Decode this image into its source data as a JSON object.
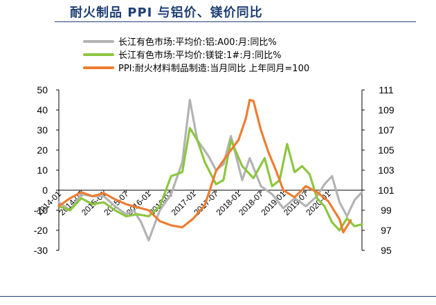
{
  "title": "耐火制品 PPI 与铝价、镁价同比",
  "colors": {
    "title": "#1f3f74",
    "aluminum": "#b3b3b3",
    "magnesium": "#8cc63f",
    "ppi": "#ed7d31",
    "axis": "#000000"
  },
  "chart_data": {
    "type": "line",
    "legend_position": "top",
    "grid": false,
    "x_labels": [
      "2014-01",
      "2014-07",
      "2015-01",
      "2015-07",
      "2016-01",
      "2016-07",
      "2017-01",
      "2017-07",
      "2018-01",
      "2018-07",
      "2019-01",
      "2019-07",
      "2020-01"
    ],
    "x_range": [
      "2014-01",
      "2020-10"
    ],
    "left_axis": {
      "ylim": [
        -30,
        50
      ],
      "ticks": [
        "50",
        "40",
        "30",
        "20",
        "10",
        "0",
        "-10",
        "-20",
        "-30"
      ]
    },
    "right_axis": {
      "ylim": [
        95,
        111
      ],
      "ticks": [
        "111",
        "109",
        "107",
        "105",
        "103",
        "101",
        "99",
        "97",
        "95"
      ]
    },
    "series": [
      {
        "name": "长江有色市场:平均价:铝:A00:月:同比%",
        "axis": "left",
        "color": "#b3b3b3",
        "points": [
          [
            "2014-01",
            -6
          ],
          [
            "2014-04",
            -10
          ],
          [
            "2014-07",
            -2
          ],
          [
            "2014-10",
            -3
          ],
          [
            "2015-01",
            -3
          ],
          [
            "2015-04",
            -8
          ],
          [
            "2015-07",
            -12
          ],
          [
            "2015-09",
            -10
          ],
          [
            "2015-11",
            -16
          ],
          [
            "2016-01",
            -25
          ],
          [
            "2016-04",
            -10
          ],
          [
            "2016-07",
            -2
          ],
          [
            "2016-10",
            14
          ],
          [
            "2016-12",
            45
          ],
          [
            "2017-02",
            25
          ],
          [
            "2017-05",
            17
          ],
          [
            "2017-07",
            10
          ],
          [
            "2017-09",
            13
          ],
          [
            "2017-11",
            27
          ],
          [
            "2018-02",
            5
          ],
          [
            "2018-04",
            16
          ],
          [
            "2018-07",
            2
          ],
          [
            "2018-10",
            -2
          ],
          [
            "2019-01",
            -9
          ],
          [
            "2019-04",
            -4
          ],
          [
            "2019-07",
            -8
          ],
          [
            "2019-10",
            -3
          ],
          [
            "2019-12",
            3
          ],
          [
            "2020-02",
            7
          ],
          [
            "2020-04",
            -6
          ],
          [
            "2020-06",
            -13
          ],
          [
            "2020-08",
            -5
          ],
          [
            "2020-10",
            -1
          ]
        ]
      },
      {
        "name": "长江有色市场:平均价:镁锭:1#:月:同比%",
        "axis": "left",
        "color": "#8cc63f",
        "points": [
          [
            "2014-01",
            -8
          ],
          [
            "2014-04",
            -10
          ],
          [
            "2014-07",
            -4
          ],
          [
            "2014-10",
            -7
          ],
          [
            "2015-01",
            -6
          ],
          [
            "2015-04",
            -10
          ],
          [
            "2015-07",
            -13
          ],
          [
            "2015-10",
            -12
          ],
          [
            "2016-01",
            -13
          ],
          [
            "2016-04",
            -8
          ],
          [
            "2016-07",
            7
          ],
          [
            "2016-10",
            9
          ],
          [
            "2016-12",
            31
          ],
          [
            "2017-02",
            25
          ],
          [
            "2017-04",
            14
          ],
          [
            "2017-07",
            3
          ],
          [
            "2017-09",
            5
          ],
          [
            "2017-11",
            25
          ],
          [
            "2018-02",
            12
          ],
          [
            "2018-05",
            6
          ],
          [
            "2018-08",
            16
          ],
          [
            "2018-10",
            2
          ],
          [
            "2018-12",
            5
          ],
          [
            "2019-02",
            23
          ],
          [
            "2019-04",
            9
          ],
          [
            "2019-06",
            12
          ],
          [
            "2019-08",
            8
          ],
          [
            "2019-10",
            -4
          ],
          [
            "2019-12",
            -8
          ],
          [
            "2020-02",
            -16
          ],
          [
            "2020-04",
            -20
          ],
          [
            "2020-06",
            -14
          ],
          [
            "2020-08",
            -18
          ],
          [
            "2020-10",
            -17
          ]
        ]
      },
      {
        "name": "PPI:耐火材料制品制造:当月同比 上年同月=100",
        "axis": "right",
        "color": "#ed7d31",
        "points": [
          [
            "2014-01",
            99.4
          ],
          [
            "2014-04",
            100.2
          ],
          [
            "2014-07",
            100.8
          ],
          [
            "2014-10",
            100.4
          ],
          [
            "2015-01",
            100.7
          ],
          [
            "2015-04",
            100.1
          ],
          [
            "2015-07",
            99.6
          ],
          [
            "2015-10",
            99.3
          ],
          [
            "2016-01",
            99.0
          ],
          [
            "2016-04",
            97.9
          ],
          [
            "2016-07",
            97.5
          ],
          [
            "2016-10",
            97.3
          ],
          [
            "2017-01",
            98.2
          ],
          [
            "2017-04",
            99.5
          ],
          [
            "2017-07",
            102.9
          ],
          [
            "2017-10",
            104.5
          ],
          [
            "2018-01",
            106.0
          ],
          [
            "2018-03",
            108.2
          ],
          [
            "2018-04",
            110.0
          ],
          [
            "2018-05",
            109.9
          ],
          [
            "2018-07",
            107.0
          ],
          [
            "2018-09",
            104.8
          ],
          [
            "2018-11",
            103.0
          ],
          [
            "2019-01",
            101.0
          ],
          [
            "2019-04",
            100.3
          ],
          [
            "2019-07",
            101.4
          ],
          [
            "2019-10",
            100.8
          ],
          [
            "2020-01",
            99.9
          ],
          [
            "2020-04",
            98.1
          ],
          [
            "2020-05",
            96.8
          ],
          [
            "2020-07",
            98.0
          ]
        ]
      }
    ]
  }
}
